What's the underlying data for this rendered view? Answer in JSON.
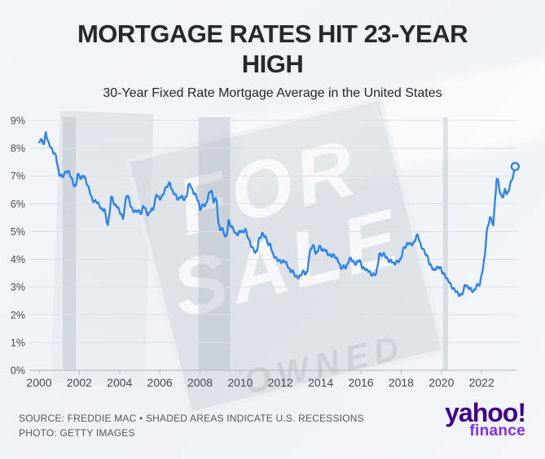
{
  "header": {
    "title": "MORTGAGE RATES HIT 23-YEAR HIGH",
    "subtitle": "30-Year Fixed Rate Mortgage Average in the United States"
  },
  "watermark": {
    "sign_word_1": "FOR",
    "sign_word_2": "SALE",
    "rider_word": "OWNED"
  },
  "chart_data": {
    "type": "line",
    "title": "MORTGAGE RATES HIT 23-YEAR HIGH",
    "subtitle": "30-Year Fixed Rate Mortgage Average in the United States",
    "xlabel": "",
    "ylabel": "",
    "ylim": [
      0,
      9
    ],
    "xlim": [
      2000,
      2023.83
    ],
    "grid": true,
    "y_ticks": [
      0,
      1,
      2,
      3,
      4,
      5,
      6,
      7,
      8,
      9
    ],
    "y_tick_suffix": "%",
    "x_ticks": [
      2000,
      2002,
      2004,
      2006,
      2008,
      2010,
      2012,
      2014,
      2016,
      2018,
      2020,
      2022
    ],
    "line_color": "#2a82ef",
    "recession_band_color": "rgba(160,170,181,0.30)",
    "recessions": [
      {
        "start": 2001.17,
        "end": 2001.83
      },
      {
        "start": 2007.92,
        "end": 2009.5
      },
      {
        "start": 2020.08,
        "end": 2020.33
      }
    ],
    "series": [
      {
        "name": "30-Year Fixed Rate Mortgage Average (%)",
        "start_year": 2000,
        "points_per_year": 12,
        "values": [
          8.21,
          8.33,
          8.24,
          8.15,
          8.58,
          8.29,
          8.15,
          8.03,
          7.91,
          7.8,
          7.75,
          7.38,
          7.03,
          7.05,
          6.95,
          7.08,
          7.15,
          7.16,
          7.13,
          6.95,
          6.82,
          6.62,
          6.66,
          7.07,
          7.0,
          6.89,
          7.01,
          6.99,
          6.81,
          6.65,
          6.49,
          6.29,
          6.09,
          6.11,
          6.07,
          6.05,
          5.92,
          5.84,
          5.75,
          5.81,
          5.48,
          5.23,
          5.63,
          6.26,
          6.15,
          5.95,
          5.93,
          5.88,
          5.71,
          5.63,
          5.45,
          5.83,
          6.27,
          6.29,
          6.06,
          5.87,
          5.75,
          5.72,
          5.73,
          5.75,
          5.71,
          5.63,
          5.93,
          5.86,
          5.72,
          5.58,
          5.7,
          5.82,
          5.77,
          6.07,
          6.33,
          6.27,
          6.15,
          6.25,
          6.32,
          6.51,
          6.6,
          6.68,
          6.76,
          6.52,
          6.4,
          6.36,
          6.24,
          6.14,
          6.22,
          6.29,
          6.16,
          6.18,
          6.26,
          6.66,
          6.7,
          6.57,
          6.38,
          6.38,
          6.21,
          6.1,
          5.76,
          5.92,
          5.97,
          5.92,
          6.04,
          6.32,
          6.43,
          6.48,
          6.04,
          6.2,
          6.09,
          5.29,
          5.05,
          5.13,
          5.0,
          4.81,
          4.86,
          5.42,
          5.22,
          5.19,
          5.06,
          4.95,
          4.88,
          4.93,
          5.03,
          4.99,
          4.97,
          5.1,
          4.89,
          4.74,
          4.56,
          4.43,
          4.35,
          4.23,
          4.3,
          4.71,
          4.76,
          4.95,
          4.84,
          4.84,
          4.64,
          4.51,
          4.55,
          4.27,
          4.11,
          4.07,
          3.99,
          3.96,
          3.92,
          3.89,
          3.95,
          3.91,
          3.8,
          3.68,
          3.55,
          3.6,
          3.5,
          3.38,
          3.35,
          3.35,
          3.41,
          3.53,
          3.57,
          3.45,
          3.54,
          4.07,
          4.37,
          4.46,
          4.49,
          4.19,
          4.26,
          4.46,
          4.43,
          4.3,
          4.34,
          4.34,
          4.19,
          4.16,
          4.13,
          4.12,
          4.16,
          4.04,
          4.0,
          3.86,
          3.67,
          3.71,
          3.77,
          3.67,
          3.84,
          3.98,
          4.05,
          3.91,
          3.89,
          3.8,
          3.94,
          3.96,
          3.87,
          3.66,
          3.69,
          3.61,
          3.6,
          3.57,
          3.44,
          3.44,
          3.46,
          3.47,
          3.77,
          4.2,
          4.15,
          4.17,
          4.2,
          4.05,
          4.01,
          3.9,
          3.97,
          3.88,
          3.81,
          3.9,
          3.92,
          3.95,
          4.03,
          4.33,
          4.44,
          4.47,
          4.59,
          4.57,
          4.53,
          4.55,
          4.63,
          4.83,
          4.87,
          4.64,
          4.46,
          4.37,
          4.27,
          4.14,
          4.07,
          3.8,
          3.77,
          3.62,
          3.61,
          3.69,
          3.7,
          3.72,
          3.62,
          3.47,
          3.45,
          3.31,
          3.23,
          3.16,
          3.02,
          2.94,
          2.89,
          2.83,
          2.77,
          2.68,
          2.74,
          2.81,
          3.08,
          3.06,
          2.96,
          2.98,
          2.87,
          2.84,
          2.9,
          3.07,
          3.07,
          3.1,
          3.45,
          3.76,
          4.17,
          4.98,
          5.23,
          5.52,
          5.41,
          5.22,
          6.11,
          6.9,
          6.81,
          6.36,
          6.27,
          6.26,
          6.54,
          6.34,
          6.43,
          6.71,
          6.84,
          7.07,
          7.31
        ]
      }
    ],
    "end_marker": {
      "value": 7.31,
      "style": "open-circle"
    },
    "legend": "none"
  },
  "footer": {
    "source_line": "SOURCE: FREDDIE MAC • SHADED AREAS INDICATE U.S. RECESSIONS",
    "photo_line": "PHOTO: GETTY IMAGES"
  },
  "branding": {
    "wordmark": "yahoo!",
    "sub_wordmark": "finance",
    "wordmark_color": "#400090",
    "sub_color": "#7d2eff"
  }
}
